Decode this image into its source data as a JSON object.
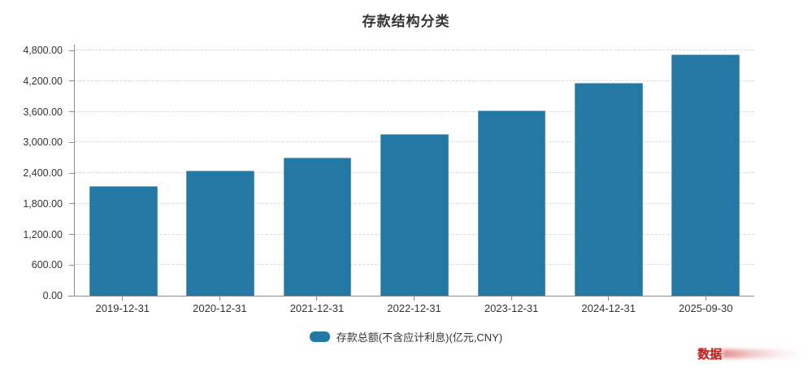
{
  "title": "存款结构分类",
  "legend": {
    "label": "存款总额(不含应计利息)(亿元,CNY)"
  },
  "watermark": "数据",
  "colors": {
    "bar": "#2478a4",
    "grid": "#d9d9d9",
    "axis": "#8c8c8c",
    "text": "#333333",
    "watermark": "#c32222"
  },
  "chart_data": {
    "type": "bar",
    "title": "存款结构分类",
    "categories": [
      "2019-12-31",
      "2020-12-31",
      "2021-12-31",
      "2022-12-31",
      "2023-12-31",
      "2024-12-31",
      "2025-09-30"
    ],
    "series": [
      {
        "name": "存款总额(不含应计利息)(亿元,CNY)",
        "values": [
          2150,
          2440,
          2710,
          3160,
          3630,
          4170,
          4720
        ]
      }
    ],
    "xlabel": "",
    "ylabel": "",
    "ylim": [
      0,
      4800
    ],
    "ytick_step": 600,
    "ytick_labels": [
      "0.00",
      "600.00",
      "1,200.00",
      "1,800.00",
      "2,400.00",
      "3,000.00",
      "3,600.00",
      "4,200.00",
      "4,800.00"
    ],
    "grid": true,
    "grid_style": "dashed-horizontal",
    "legend_position": "bottom"
  }
}
